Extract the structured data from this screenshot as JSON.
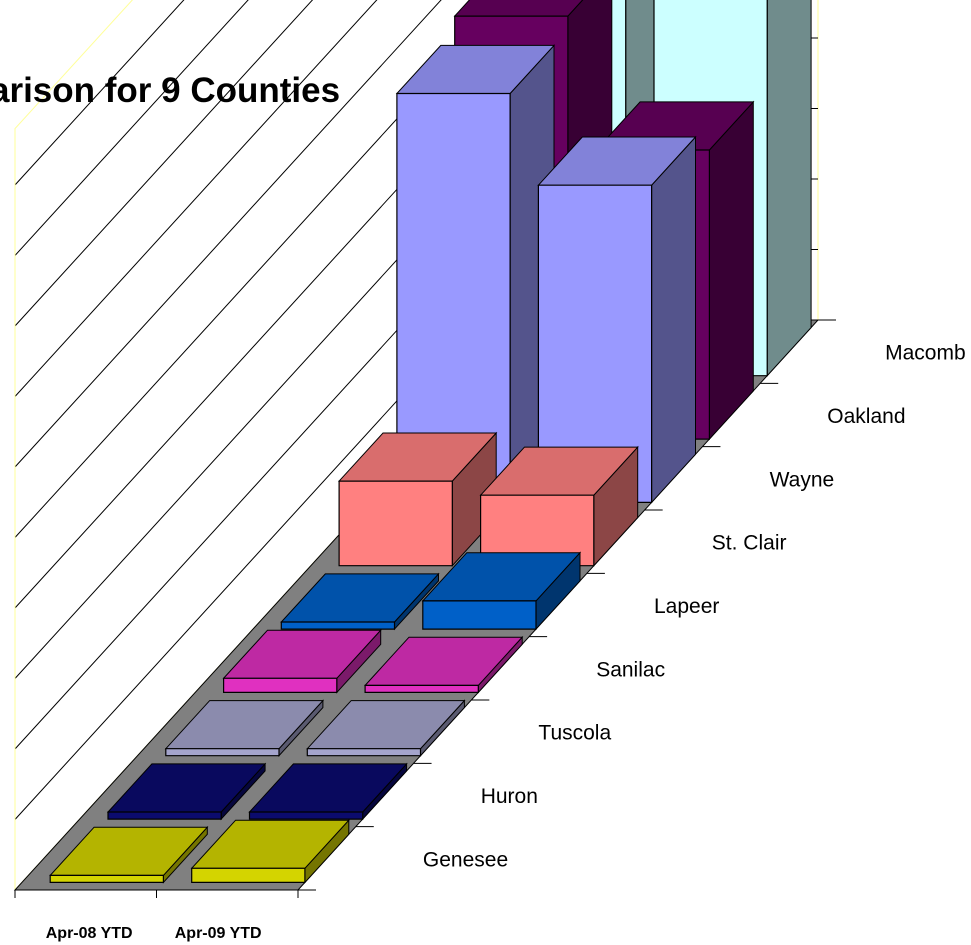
{
  "chart_data": {
    "type": "bar",
    "title": "arison for 9 Counties",
    "series": [
      {
        "name": "Apr-08 YTD"
      },
      {
        "name": "Apr-09 YTD"
      }
    ],
    "categories": [
      {
        "name": "Genesee",
        "apr08": 0.1,
        "apr09": 0.2,
        "color": "#d4d400"
      },
      {
        "name": "Huron",
        "apr08": 0.1,
        "apr09": 0.1,
        "color": "#0b0b6e"
      },
      {
        "name": "Tuscola",
        "apr08": 0.1,
        "apr09": 0.1,
        "color": "#a4a4cc"
      },
      {
        "name": "Sanilac",
        "apr08": 0.2,
        "apr09": 0.1,
        "color": "#e030c0"
      },
      {
        "name": "Lapeer",
        "apr08": 0.1,
        "apr09": 0.4,
        "color": "#0060c8"
      },
      {
        "name": "St. Clair",
        "apr08": 1.2,
        "apr09": 1.0,
        "color": "#ff8080"
      },
      {
        "name": "Wayne",
        "apr08": 5.8,
        "apr09": 4.5,
        "color": "#9999ff"
      },
      {
        "name": "Oakland",
        "apr08": 6.0,
        "apr09": 4.1,
        "color": "#66005f"
      },
      {
        "name": "Macomb",
        "apr08": 8.5,
        "apr09": 6.2,
        "color": "#ccffff"
      }
    ],
    "ylim": [
      0,
      10
    ],
    "grid": true,
    "legend": "none"
  }
}
